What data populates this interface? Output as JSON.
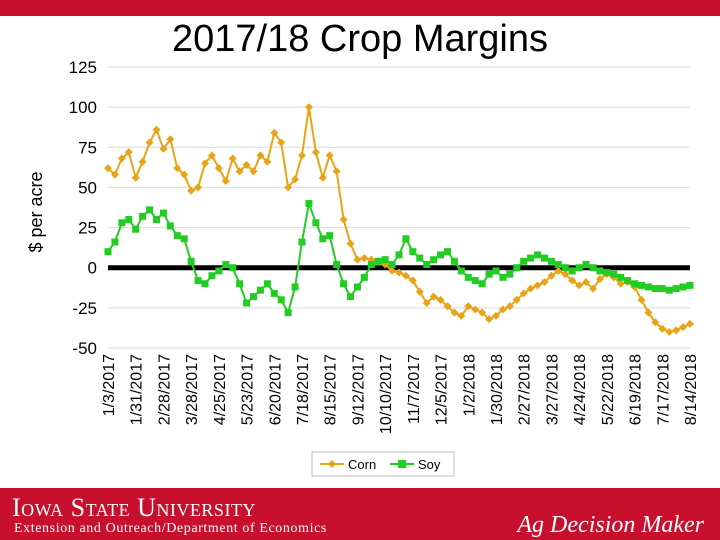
{
  "header": {
    "title": "2017/18 Crop Margins"
  },
  "footer": {
    "university": "Iowa State University",
    "department": "Extension and Outreach/Department of Economics",
    "brand": "Ag Decision Maker"
  },
  "colors": {
    "corn": "#e8a317",
    "soy": "#22cc22",
    "accent": "#c8102e",
    "zero_line": "#000000"
  },
  "chart_data": {
    "type": "line",
    "title": "2017/18 Crop Margins",
    "ylabel": "$ per acre",
    "xlabel": "",
    "ylim": [
      -50,
      125
    ],
    "yticks": [
      -50,
      -25,
      0,
      25,
      50,
      75,
      100,
      125
    ],
    "grid": "horizontal",
    "legend_position": "bottom",
    "x_tick_labels": [
      "1/3/2017",
      "1/31/2017",
      "2/28/2017",
      "3/28/2017",
      "4/25/2017",
      "5/23/2017",
      "6/20/2017",
      "7/18/2017",
      "8/15/2017",
      "9/12/2017",
      "10/10/2017",
      "11/7/2017",
      "12/5/2017",
      "1/2/2018",
      "1/30/2018",
      "2/27/2018",
      "3/27/2018",
      "4/24/2018",
      "5/22/2018",
      "6/19/2018",
      "7/17/2018",
      "8/14/2018"
    ],
    "x_index_range": [
      0,
      84
    ],
    "series": [
      {
        "name": "Corn",
        "color": "#e8a317",
        "marker": "diamond",
        "x": [
          0,
          1,
          2,
          3,
          4,
          5,
          6,
          7,
          8,
          9,
          10,
          11,
          12,
          13,
          14,
          15,
          16,
          17,
          18,
          19,
          20,
          21,
          22,
          23,
          24,
          25,
          26,
          27,
          28,
          29,
          30,
          31,
          32,
          33,
          34,
          35,
          36,
          37,
          38,
          39,
          40,
          41,
          42,
          43,
          44,
          45,
          46,
          47,
          48,
          49,
          50,
          51,
          52,
          53,
          54,
          55,
          56,
          57,
          58,
          59,
          60,
          61,
          62,
          63,
          64,
          65,
          66,
          67,
          68,
          69,
          70,
          71,
          72,
          73,
          74,
          75,
          76,
          77,
          78,
          79,
          80,
          81,
          82,
          83,
          84
        ],
        "values": [
          62,
          58,
          68,
          72,
          56,
          66,
          78,
          86,
          74,
          80,
          62,
          58,
          48,
          50,
          65,
          70,
          62,
          54,
          68,
          60,
          64,
          60,
          70,
          66,
          84,
          78,
          50,
          55,
          70,
          100,
          72,
          56,
          70,
          60,
          30,
          15,
          5,
          6,
          5,
          4,
          2,
          -2,
          -3,
          -5,
          -8,
          -15,
          -22,
          -18,
          -20,
          -24,
          -28,
          -30,
          -24,
          -26,
          -28,
          -32,
          -30,
          -26,
          -24,
          -20,
          -16,
          -13,
          -11,
          -9,
          -5,
          -2,
          -4,
          -8,
          -11,
          -9,
          -13,
          -7,
          -4,
          -6,
          -10,
          -9,
          -12,
          -20,
          -28,
          -34,
          -38,
          -40,
          -39,
          -37,
          -35
        ]
      },
      {
        "name": "Soy",
        "color": "#22cc22",
        "marker": "square",
        "x": [
          0,
          1,
          2,
          3,
          4,
          5,
          6,
          7,
          8,
          9,
          10,
          11,
          12,
          13,
          14,
          15,
          16,
          17,
          18,
          19,
          20,
          21,
          22,
          23,
          24,
          25,
          26,
          27,
          28,
          29,
          30,
          31,
          32,
          33,
          34,
          35,
          36,
          37,
          38,
          39,
          40,
          41,
          42,
          43,
          44,
          45,
          46,
          47,
          48,
          49,
          50,
          51,
          52,
          53,
          54,
          55,
          56,
          57,
          58,
          59,
          60,
          61,
          62,
          63,
          64,
          65,
          66,
          67,
          68,
          69,
          70,
          71,
          72,
          73,
          74,
          75,
          76,
          77,
          78,
          79,
          80,
          81,
          82,
          83,
          84
        ],
        "values": [
          10,
          16,
          28,
          30,
          24,
          32,
          36,
          30,
          34,
          26,
          20,
          18,
          4,
          -8,
          -10,
          -5,
          -2,
          2,
          0,
          -10,
          -22,
          -18,
          -14,
          -10,
          -16,
          -20,
          -28,
          -12,
          16,
          40,
          28,
          18,
          20,
          2,
          -10,
          -18,
          -12,
          -6,
          2,
          4,
          5,
          2,
          8,
          18,
          10,
          6,
          2,
          5,
          8,
          10,
          4,
          -2,
          -6,
          -8,
          -10,
          -4,
          -2,
          -6,
          -4,
          0,
          4,
          6,
          8,
          6,
          4,
          2,
          0,
          -2,
          0,
          2,
          0,
          -2,
          -3,
          -4,
          -6,
          -8,
          -10,
          -11,
          -12,
          -13,
          -13,
          -14,
          -13,
          -12,
          -11
        ]
      }
    ]
  }
}
